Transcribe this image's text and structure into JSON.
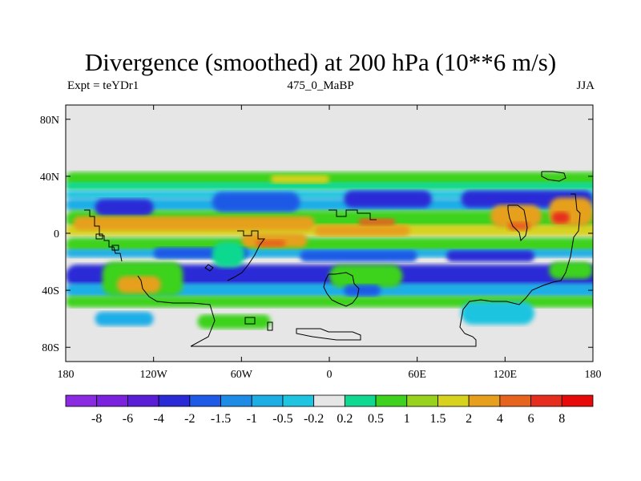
{
  "chart_data": {
    "type": "contour-map",
    "title": "Divergence (smoothed) at 200 hPa (10**6 m/s)",
    "subtitle_left": "Expt = teYDr1",
    "subtitle_center": "475_0_MaBP",
    "subtitle_right": "JJA",
    "x_range": [
      -180,
      180
    ],
    "y_range": [
      -90,
      90
    ],
    "x_ticks": [
      {
        "value": -180,
        "label": "180"
      },
      {
        "value": -120,
        "label": "120W"
      },
      {
        "value": -60,
        "label": "60W"
      },
      {
        "value": 0,
        "label": "0"
      },
      {
        "value": 60,
        "label": "60E"
      },
      {
        "value": 120,
        "label": "120E"
      },
      {
        "value": 180,
        "label": "180"
      }
    ],
    "y_ticks": [
      {
        "value": 80,
        "label": "80N"
      },
      {
        "value": 40,
        "label": "40N"
      },
      {
        "value": 0,
        "label": "0"
      },
      {
        "value": -40,
        "label": "40S"
      },
      {
        "value": -80,
        "label": "80S"
      }
    ],
    "levels": [
      "-8",
      "-6",
      "-4",
      "-2",
      "-1.5",
      "-1",
      "-0.5",
      "-0.2",
      "0.2",
      "0.5",
      "1",
      "1.5",
      "2",
      "4",
      "6",
      "8"
    ],
    "colors": [
      "#8a2be2",
      "#7a22dd",
      "#5a1ed6",
      "#2a2ad6",
      "#1e5ae6",
      "#1e8ce6",
      "#1eaee6",
      "#1ec4e0",
      "#e6e6e6",
      "#10d890",
      "#3ed21e",
      "#96d21e",
      "#d6d21e",
      "#e6a01e",
      "#e6641e",
      "#e62e1e",
      "#e60a0a"
    ],
    "field_blobs": [
      {
        "lon": -180,
        "lat": 38,
        "w": 370,
        "h": 10,
        "color": "#3ed21e"
      },
      {
        "lon": -180,
        "lat": 33,
        "w": 370,
        "h": 6,
        "color": "#10d890"
      },
      {
        "lon": -180,
        "lat": 27,
        "w": 370,
        "h": 6,
        "color": "#1ec4e0"
      },
      {
        "lon": -180,
        "lat": 20,
        "w": 370,
        "h": 9,
        "color": "#1eaee6"
      },
      {
        "lon": -180,
        "lat": 10,
        "w": 370,
        "h": 12,
        "color": "#3ed21e"
      },
      {
        "lon": -180,
        "lat": 2,
        "w": 370,
        "h": 8,
        "color": "#d6d21e"
      },
      {
        "lon": -180,
        "lat": -8,
        "w": 370,
        "h": 10,
        "color": "#3ed21e"
      },
      {
        "lon": -180,
        "lat": -14,
        "w": 370,
        "h": 6,
        "color": "#1eaee6"
      },
      {
        "lon": -180,
        "lat": -30,
        "w": 370,
        "h": 16,
        "color": "#2a2ad6"
      },
      {
        "lon": -180,
        "lat": -40,
        "w": 370,
        "h": 10,
        "color": "#1eaee6"
      },
      {
        "lon": -180,
        "lat": -48,
        "w": 370,
        "h": 8,
        "color": "#3ed21e"
      },
      {
        "lon": -160,
        "lat": 18,
        "w": 40,
        "h": 12,
        "color": "#2a2ad6"
      },
      {
        "lon": -80,
        "lat": 22,
        "w": 60,
        "h": 14,
        "color": "#1e5ae6"
      },
      {
        "lon": -40,
        "lat": 38,
        "w": 40,
        "h": 6,
        "color": "#d6d21e"
      },
      {
        "lon": 10,
        "lat": 24,
        "w": 60,
        "h": 12,
        "color": "#2a2ad6"
      },
      {
        "lon": 90,
        "lat": 24,
        "w": 90,
        "h": 12,
        "color": "#2a2ad6"
      },
      {
        "lon": -175,
        "lat": 7,
        "w": 165,
        "h": 10,
        "color": "#e6a01e"
      },
      {
        "lon": -10,
        "lat": 2,
        "w": 65,
        "h": 8,
        "color": "#e6a01e"
      },
      {
        "lon": 20,
        "lat": 8,
        "w": 25,
        "h": 5,
        "color": "#e6641e"
      },
      {
        "lon": 110,
        "lat": 12,
        "w": 35,
        "h": 16,
        "color": "#e6a01e"
      },
      {
        "lon": 122,
        "lat": 5,
        "w": 15,
        "h": 6,
        "color": "#e6641e"
      },
      {
        "lon": 150,
        "lat": 15,
        "w": 30,
        "h": 20,
        "color": "#e6a01e"
      },
      {
        "lon": 152,
        "lat": 11,
        "w": 12,
        "h": 8,
        "color": "#e62e1e"
      },
      {
        "lon": -60,
        "lat": -5,
        "w": 45,
        "h": 10,
        "color": "#e6a01e"
      },
      {
        "lon": -50,
        "lat": -7,
        "w": 20,
        "h": 5,
        "color": "#e6641e"
      },
      {
        "lon": -120,
        "lat": -14,
        "w": 65,
        "h": 8,
        "color": "#1e5ae6"
      },
      {
        "lon": -20,
        "lat": -16,
        "w": 80,
        "h": 8,
        "color": "#1e5ae6"
      },
      {
        "lon": 80,
        "lat": -16,
        "w": 60,
        "h": 8,
        "color": "#2a2ad6"
      },
      {
        "lon": -80,
        "lat": -15,
        "w": 22,
        "h": 18,
        "color": "#10d890"
      },
      {
        "lon": -155,
        "lat": -32,
        "w": 55,
        "h": 24,
        "color": "#3ed21e"
      },
      {
        "lon": -145,
        "lat": -36,
        "w": 30,
        "h": 12,
        "color": "#e6a01e"
      },
      {
        "lon": 0,
        "lat": -30,
        "w": 50,
        "h": 16,
        "color": "#3ed21e"
      },
      {
        "lon": 10,
        "lat": -40,
        "w": 25,
        "h": 8,
        "color": "#1e5ae6"
      },
      {
        "lon": 150,
        "lat": -26,
        "w": 30,
        "h": 12,
        "color": "#3ed21e"
      },
      {
        "lon": 90,
        "lat": -56,
        "w": 50,
        "h": 16,
        "color": "#1ec4e0"
      },
      {
        "lon": -160,
        "lat": -60,
        "w": 40,
        "h": 10,
        "color": "#1eaee6"
      },
      {
        "lon": -90,
        "lat": -62,
        "w": 50,
        "h": 10,
        "color": "#3ed21e"
      }
    ]
  },
  "colorbar_labels": [
    "-8",
    "-6",
    "-4",
    "-2",
    "-1.5",
    "-1",
    "-0.5",
    "-0.2",
    "0.2",
    "0.5",
    "1",
    "1.5",
    "2",
    "4",
    "6",
    "8"
  ]
}
